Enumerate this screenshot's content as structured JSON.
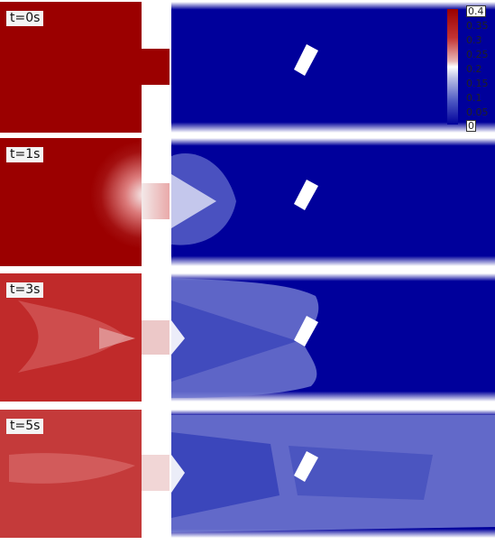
{
  "frames": [
    {
      "time_label": "t=0s"
    },
    {
      "time_label": "t=1s"
    },
    {
      "time_label": "t=3s"
    },
    {
      "time_label": "t=5s"
    }
  ],
  "colorbar": {
    "ticks": [
      "0.4",
      "0.35",
      "0.3",
      "0.25",
      "0.2",
      "0.15",
      "0.1",
      "0.05",
      "0"
    ],
    "max_color": "#9b0000",
    "mid_color": "#ffffff",
    "min_color": "#00009b"
  }
}
